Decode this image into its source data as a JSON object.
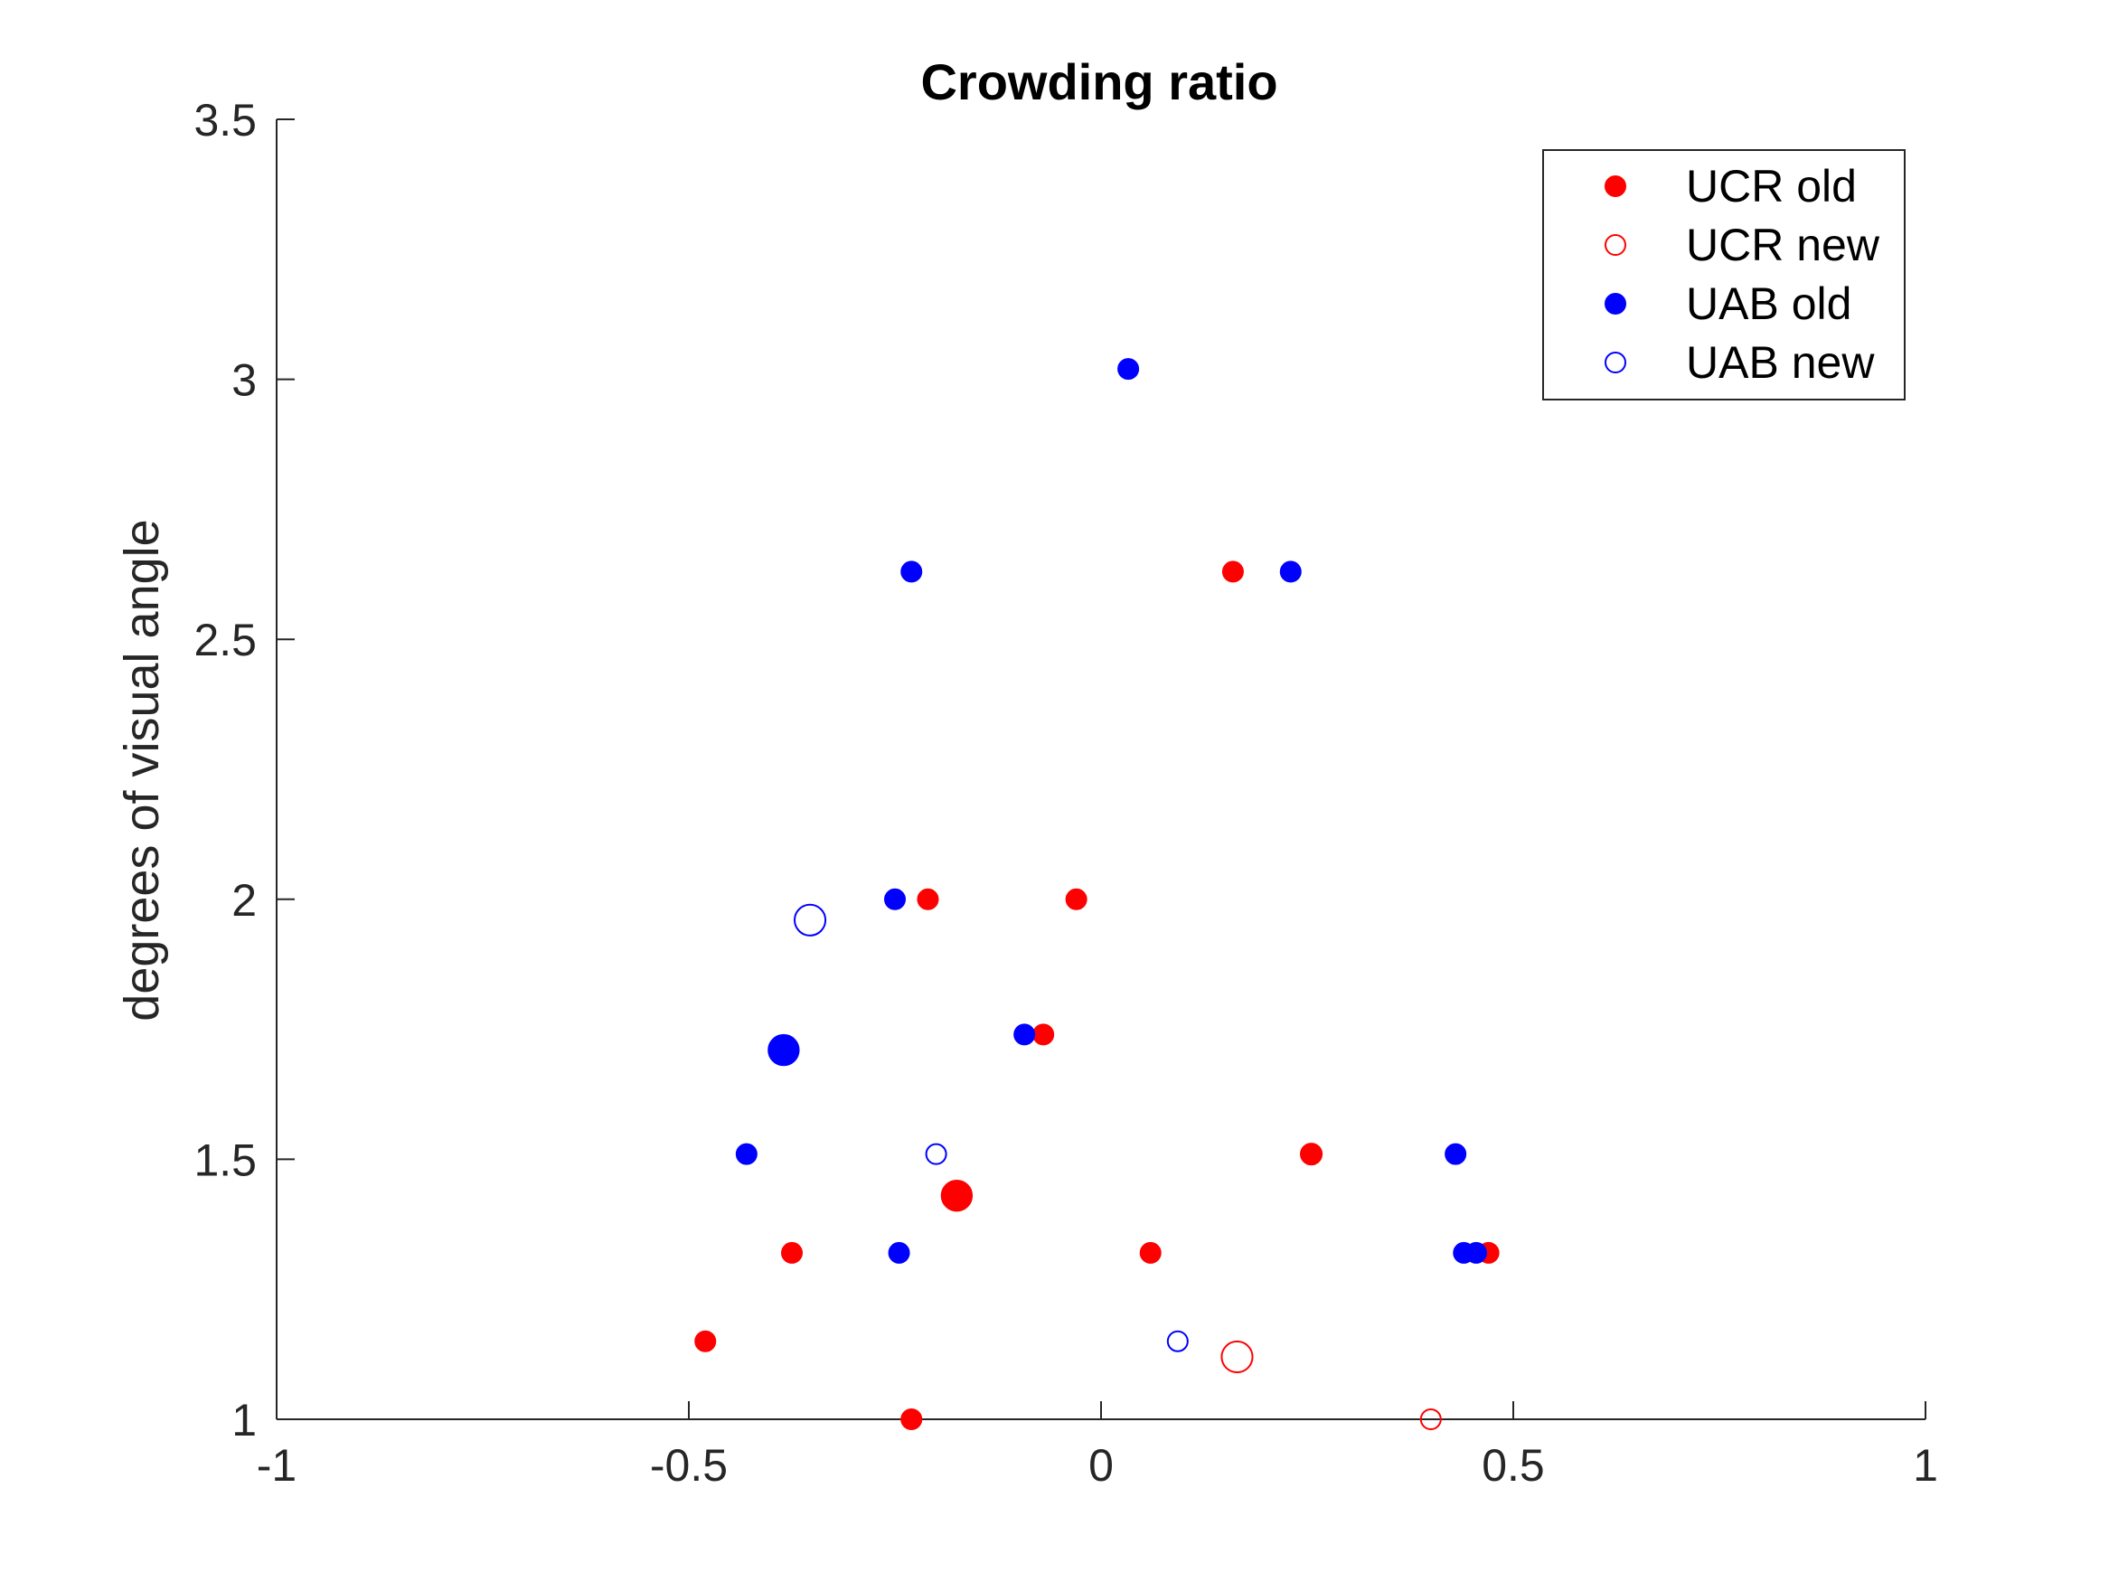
{
  "chart_data": {
    "type": "scatter",
    "title": "Crowding ratio",
    "xlabel": "",
    "ylabel": "degrees of visual angle",
    "xlim": [
      -1,
      1
    ],
    "ylim": [
      1,
      3.5
    ],
    "xticks": [
      "-1",
      "-0.5",
      "0",
      "0.5",
      "1"
    ],
    "yticks": [
      "1",
      "1.5",
      "2",
      "2.5",
      "3",
      "3.5"
    ],
    "grid": false,
    "legend_position": "top-right",
    "series": [
      {
        "name": "UCR old",
        "color": "#ff0000",
        "filled": true,
        "points": [
          {
            "x": 0.16,
            "y": 2.63,
            "w": 1
          },
          {
            "x": -0.21,
            "y": 2.0,
            "w": 1
          },
          {
            "x": -0.03,
            "y": 2.0,
            "w": 1
          },
          {
            "x": -0.07,
            "y": 1.74,
            "w": 1
          },
          {
            "x": 0.255,
            "y": 1.51,
            "w": 1.1
          },
          {
            "x": -0.175,
            "y": 1.43,
            "w": 2.3
          },
          {
            "x": -0.375,
            "y": 1.32,
            "w": 1
          },
          {
            "x": 0.06,
            "y": 1.32,
            "w": 1
          },
          {
            "x": 0.47,
            "y": 1.32,
            "w": 1
          },
          {
            "x": -0.48,
            "y": 1.15,
            "w": 1
          },
          {
            "x": -0.23,
            "y": 1.0,
            "w": 1
          }
        ]
      },
      {
        "name": "UCR new",
        "color": "#ff0000",
        "filled": false,
        "points": [
          {
            "x": 0.165,
            "y": 1.12,
            "w": 2.4
          },
          {
            "x": 0.4,
            "y": 1.0,
            "w": 1
          }
        ]
      },
      {
        "name": "UAB old",
        "color": "#0000ff",
        "filled": true,
        "points": [
          {
            "x": 0.033,
            "y": 3.02,
            "w": 1
          },
          {
            "x": -0.23,
            "y": 2.63,
            "w": 1
          },
          {
            "x": 0.23,
            "y": 2.63,
            "w": 1
          },
          {
            "x": -0.25,
            "y": 2.0,
            "w": 1
          },
          {
            "x": -0.093,
            "y": 1.74,
            "w": 1
          },
          {
            "x": -0.385,
            "y": 1.71,
            "w": 2.3
          },
          {
            "x": -0.43,
            "y": 1.51,
            "w": 1
          },
          {
            "x": 0.43,
            "y": 1.51,
            "w": 1
          },
          {
            "x": -0.245,
            "y": 1.32,
            "w": 1
          },
          {
            "x": 0.44,
            "y": 1.32,
            "w": 1
          },
          {
            "x": 0.455,
            "y": 1.32,
            "w": 1
          }
        ]
      },
      {
        "name": "UAB new",
        "color": "#0000ff",
        "filled": false,
        "points": [
          {
            "x": -0.353,
            "y": 1.96,
            "w": 2.4
          },
          {
            "x": -0.2,
            "y": 1.51,
            "w": 1
          },
          {
            "x": 0.093,
            "y": 1.15,
            "w": 1
          }
        ]
      }
    ]
  }
}
